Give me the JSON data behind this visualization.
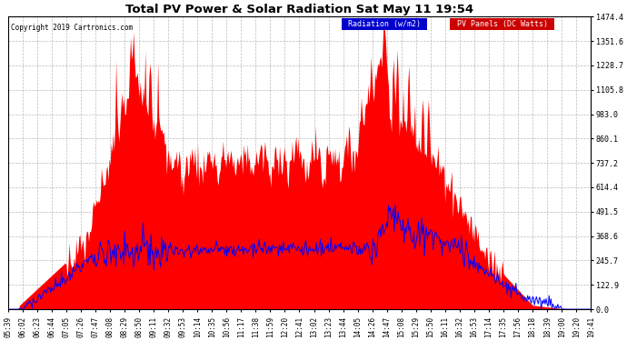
{
  "title": "Total PV Power & Solar Radiation Sat May 11 19:54",
  "copyright": "Copyright 2019 Cartronics.com",
  "yticks": [
    0.0,
    122.9,
    245.7,
    368.6,
    491.5,
    614.4,
    737.2,
    860.1,
    983.0,
    1105.8,
    1228.7,
    1351.6,
    1474.4
  ],
  "ymax": 1474.4,
  "ymin": 0.0,
  "background_color": "#ffffff",
  "plot_bg_color": "#ffffff",
  "grid_color": "#aaaaaa",
  "red_color": "#ff0000",
  "blue_color": "#0000ff",
  "legend_radiation_bg": "#0000cc",
  "legend_pv_bg": "#cc0000",
  "xtick_labels": [
    "05:39",
    "06:02",
    "06:23",
    "06:44",
    "07:05",
    "07:26",
    "07:47",
    "08:08",
    "08:29",
    "08:50",
    "09:11",
    "09:32",
    "09:53",
    "10:14",
    "10:35",
    "10:56",
    "11:17",
    "11:38",
    "11:59",
    "12:20",
    "12:41",
    "13:02",
    "13:23",
    "13:44",
    "14:05",
    "14:26",
    "14:47",
    "15:08",
    "15:29",
    "15:50",
    "16:11",
    "16:32",
    "16:53",
    "17:14",
    "17:35",
    "17:56",
    "18:18",
    "18:39",
    "19:00",
    "19:20",
    "19:41"
  ],
  "n_points": 600
}
